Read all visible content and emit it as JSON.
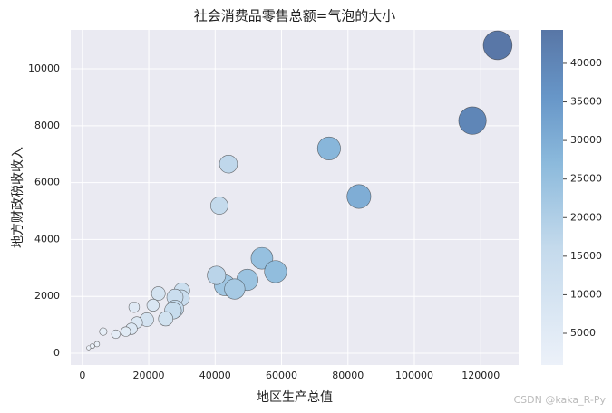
{
  "chart_data": {
    "type": "bubble",
    "title": "社会消费品零售总额=气泡的大小",
    "x_label": "地区生产总值",
    "y_label": "地方财政税收收入",
    "x": [
      125100,
      117500,
      74300,
      83300,
      44000,
      41250,
      54100,
      58200,
      49700,
      42900,
      45900,
      40400,
      30000,
      29800,
      27900,
      27900,
      22900,
      27300,
      25100,
      19400,
      21300,
      15600,
      16400,
      14800,
      13100,
      10100,
      6300,
      4400,
      3000,
      1900
    ],
    "values": [
      10830,
      8180,
      7200,
      5510,
      6650,
      5190,
      3340,
      2870,
      2580,
      2390,
      2260,
      2740,
      2200,
      1940,
      1970,
      1560,
      2100,
      1500,
      1210,
      1180,
      1690,
      1620,
      1080,
      860,
      760,
      670,
      760,
      320,
      250,
      190
    ],
    "sizes": [
      44000,
      40000,
      28000,
      30000,
      17000,
      16000,
      25000,
      26000,
      24000,
      23000,
      22000,
      18000,
      13000,
      14000,
      14000,
      16000,
      10000,
      15000,
      11000,
      10000,
      8000,
      6000,
      7000,
      7000,
      5000,
      4000,
      3000,
      1500,
      1200,
      900
    ],
    "xlim": [
      -3500,
      131400
    ],
    "ylim": [
      -414,
      11370
    ],
    "xticks": [
      0,
      20000,
      40000,
      60000,
      80000,
      100000,
      120000
    ],
    "yticks": [
      0,
      2000,
      4000,
      6000,
      8000,
      10000
    ],
    "clim": [
      890,
      44340
    ],
    "cticks": [
      5000,
      10000,
      15000,
      20000,
      25000,
      30000,
      35000,
      40000
    ],
    "grid": true,
    "watermark": "CSDN @kaka_R-Py"
  }
}
